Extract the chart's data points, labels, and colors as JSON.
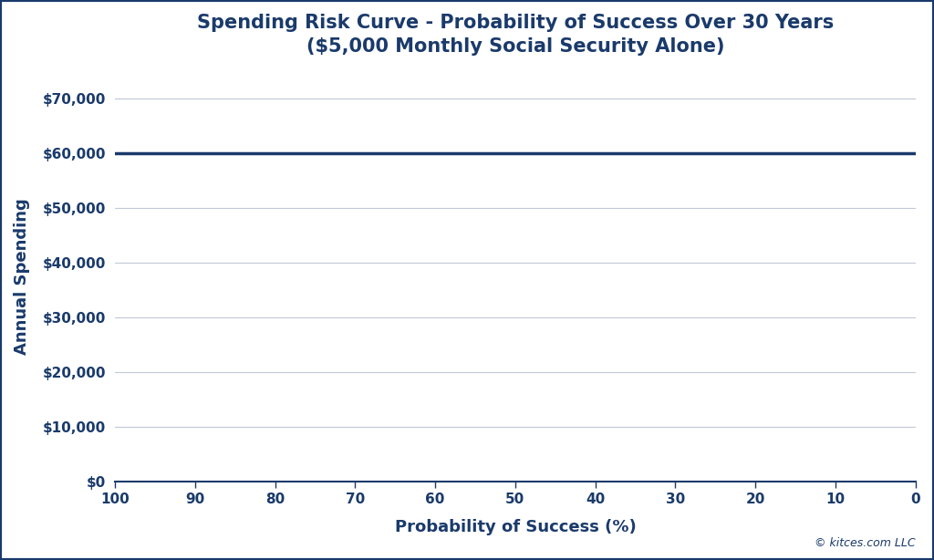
{
  "title_line1": "Spending Risk Curve - Probability of Success Over 30 Years",
  "title_line2": "($5,000 Monthly Social Security Alone)",
  "xlabel": "Probability of Success (%)",
  "ylabel": "Annual Spending",
  "x_ticks": [
    100,
    90,
    80,
    70,
    60,
    50,
    40,
    30,
    20,
    10,
    0
  ],
  "y_ticks": [
    0,
    10000,
    20000,
    30000,
    40000,
    50000,
    60000,
    70000
  ],
  "y_tick_labels": [
    "$0",
    "$10,000",
    "$20,000",
    "$30,000",
    "$40,000",
    "$50,000",
    "$60,000",
    "$70,000"
  ],
  "xlim": [
    100,
    0
  ],
  "ylim": [
    0,
    75000
  ],
  "line_y_value": 60000,
  "line_color": "#1a3a6b",
  "line_width": 2.5,
  "title_color": "#1a3a6b",
  "axis_label_color": "#1a3a6b",
  "tick_color": "#1a3a6b",
  "grid_color": "#c0c8d8",
  "background_color": "#ffffff",
  "border_color": "#1a3a6b",
  "watermark": "© kitces.com LLC",
  "title_fontsize": 15,
  "axis_label_fontsize": 13,
  "tick_fontsize": 11,
  "watermark_fontsize": 9
}
